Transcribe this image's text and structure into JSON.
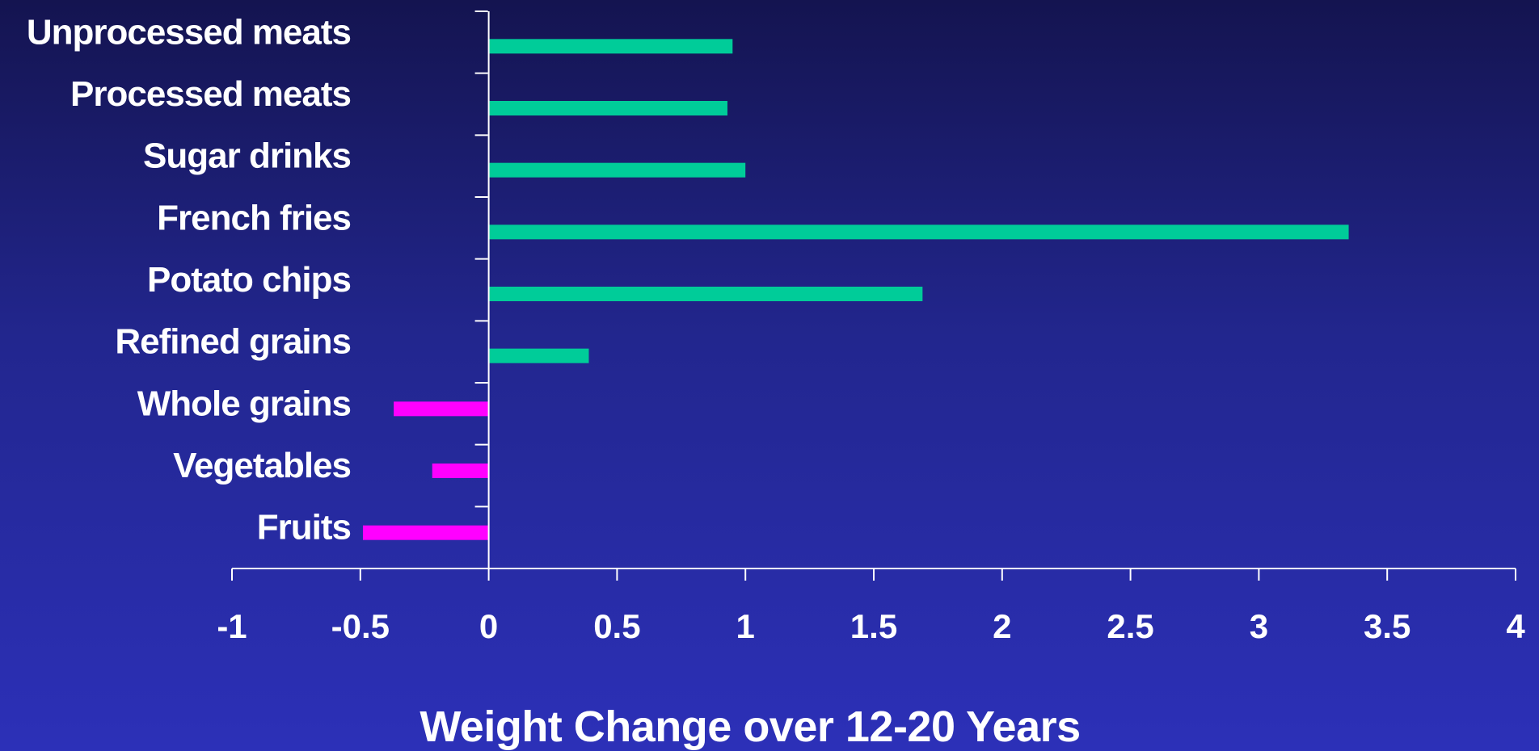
{
  "chart_data": {
    "type": "bar",
    "orientation": "horizontal",
    "categories": [
      "Unprocessed meats",
      "Processed meats",
      "Sugar drinks",
      "French fries",
      "Potato chips",
      "Refined grains",
      "Whole grains",
      "Vegetables",
      "Fruits"
    ],
    "values": [
      0.95,
      0.93,
      1.0,
      3.35,
      1.69,
      0.39,
      -0.37,
      -0.22,
      -0.49
    ],
    "xlabel": "Weight Change over 12-20 Years",
    "ylabel": "",
    "xlim": [
      -1,
      4
    ],
    "x_ticks": [
      -1,
      -0.5,
      0,
      0.5,
      1,
      1.5,
      2,
      2.5,
      3,
      3.5,
      4
    ],
    "x_tick_labels": [
      "-1",
      "-0.5",
      "0",
      "0.5",
      "1",
      "1.5",
      "2",
      "2.5",
      "3",
      "3.5",
      "4"
    ],
    "grid": false,
    "legend": "none",
    "colors": {
      "positive": "#00cc99",
      "negative": "#ff00ff",
      "text": "#ffffff",
      "axis": "#ffffff",
      "background_top": "#141450",
      "background_bottom": "#2c30b8"
    }
  }
}
